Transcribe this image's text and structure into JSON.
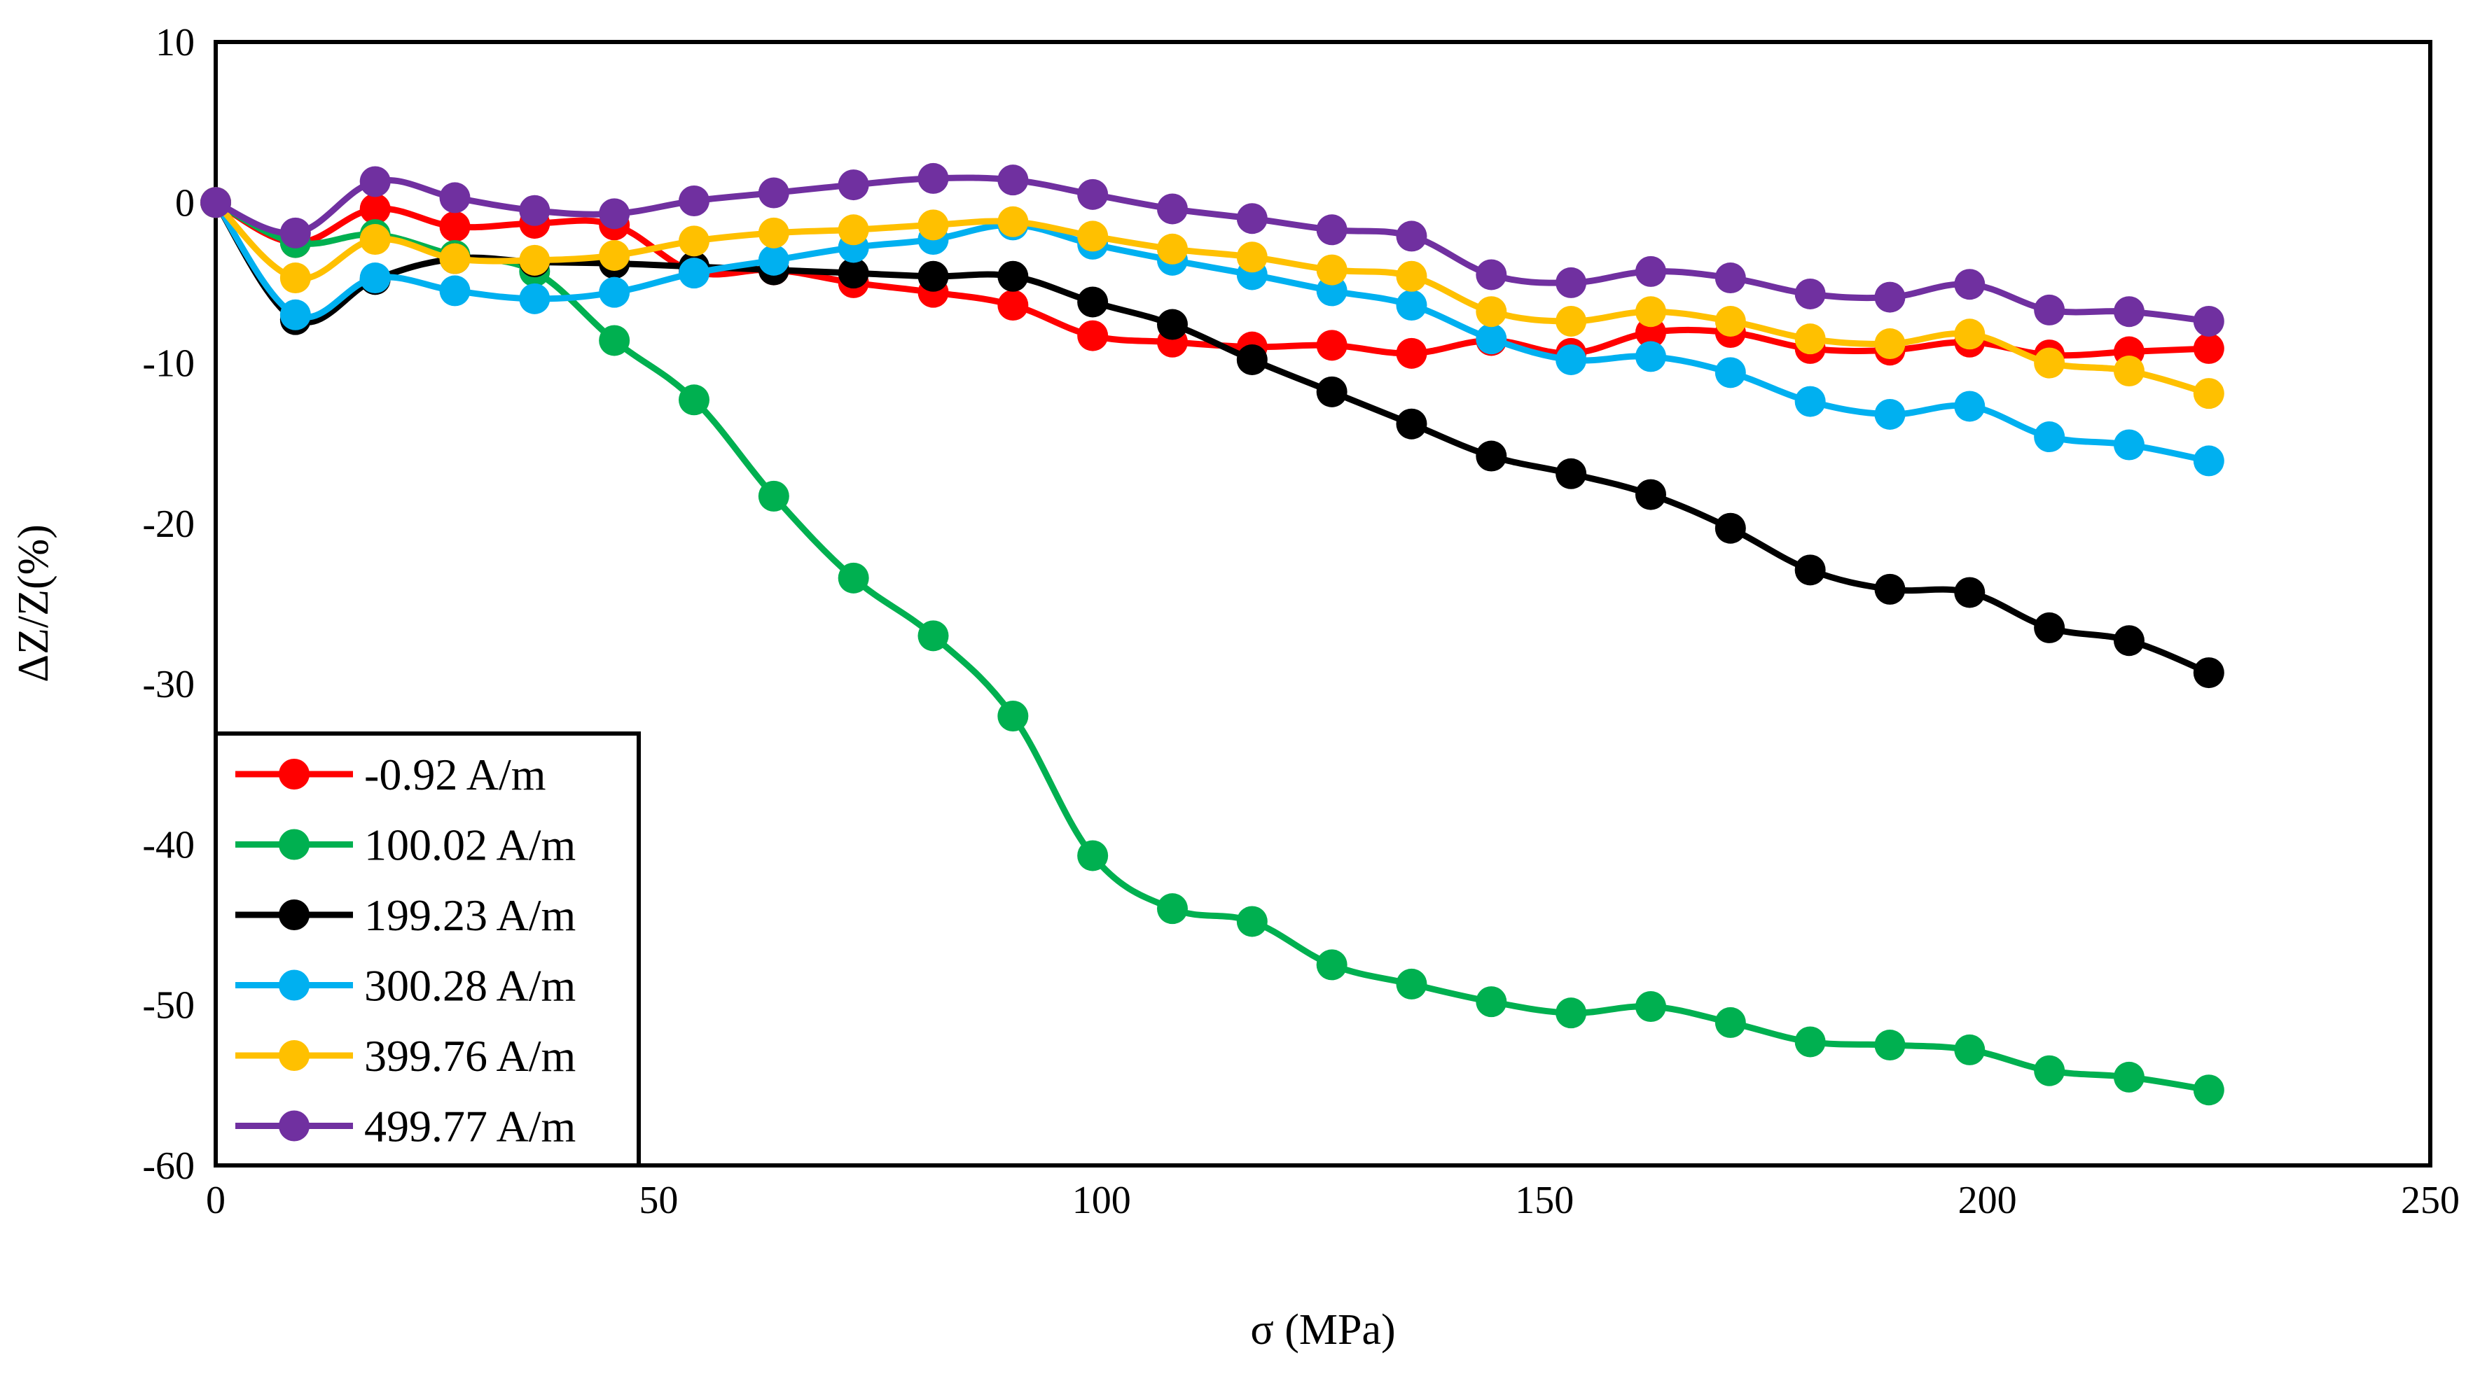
{
  "chart_data": {
    "type": "line",
    "title": "",
    "xlabel": "σ (MPa)",
    "ylabel": "ΔZ/Z(%)",
    "xlim": [
      0,
      250
    ],
    "ylim": [
      -60,
      10
    ],
    "grid": false,
    "legend_position": "bottom-left",
    "xticks": [
      0,
      50,
      100,
      150,
      200,
      250
    ],
    "yticks": [
      10,
      0,
      -10,
      -20,
      -30,
      -40,
      -50,
      -60
    ],
    "x": [
      0,
      9,
      18,
      27,
      36,
      45,
      54,
      63,
      72,
      81,
      90,
      99,
      108,
      117,
      126,
      135,
      144,
      153,
      162,
      171,
      180,
      189,
      198,
      207,
      216,
      225
    ],
    "series": [
      {
        "name": "-0.92 A/m",
        "color": "#ff0000",
        "values": [
          0,
          -2.5,
          -0.4,
          -1.5,
          -1.3,
          -1.4,
          -4.3,
          -4.2,
          -5,
          -5.6,
          -6.4,
          -8.3,
          -8.7,
          -9,
          -8.9,
          -9.4,
          -8.6,
          -9.4,
          -8.1,
          -8.1,
          -9.1,
          -9.2,
          -8.7,
          -9.5,
          -9.3,
          -9.1
        ]
      },
      {
        "name": "100.02 A/m",
        "color": "#00b050",
        "values": [
          0,
          -2.5,
          -2,
          -3.3,
          -4.3,
          -8.6,
          -12.3,
          -18.3,
          -23.4,
          -27,
          -32,
          -40.7,
          -44,
          -44.8,
          -47.5,
          -48.7,
          -49.8,
          -50.5,
          -50.1,
          -51.1,
          -52.3,
          -52.5,
          -52.8,
          -54.1,
          -54.5,
          -55.3
        ]
      },
      {
        "name": "199.23 A/m",
        "color": "#000000",
        "values": [
          0,
          -7.3,
          -4.8,
          -3.5,
          -3.7,
          -3.8,
          -4,
          -4.2,
          -4.4,
          -4.6,
          -4.6,
          -6.2,
          -7.6,
          -9.8,
          -11.8,
          -13.8,
          -15.8,
          -16.9,
          -18.2,
          -20.3,
          -22.9,
          -24.1,
          -24.3,
          -26.5,
          -27.3,
          -29.3
        ]
      },
      {
        "name": "300.28 A/m",
        "color": "#00b0f0",
        "values": [
          0,
          -7,
          -4.7,
          -5.5,
          -6,
          -5.6,
          -4.4,
          -3.6,
          -2.8,
          -2.3,
          -1.4,
          -2.6,
          -3.6,
          -4.5,
          -5.5,
          -6.4,
          -8.5,
          -9.8,
          -9.6,
          -10.6,
          -12.4,
          -13.2,
          -12.7,
          -14.6,
          -15.1,
          -16.1
        ]
      },
      {
        "name": "399.76 A/m",
        "color": "#ffc000",
        "values": [
          0,
          -4.7,
          -2.3,
          -3.5,
          -3.6,
          -3.3,
          -2.4,
          -1.9,
          -1.7,
          -1.4,
          -1.2,
          -2.1,
          -2.9,
          -3.4,
          -4.2,
          -4.6,
          -6.8,
          -7.4,
          -6.8,
          -7.4,
          -8.5,
          -8.8,
          -8.2,
          -10,
          -10.5,
          -11.9
        ]
      },
      {
        "name": "499.77 A/m",
        "color": "#7030a0",
        "values": [
          0,
          -1.9,
          1.3,
          0.3,
          -0.5,
          -0.7,
          0.1,
          0.6,
          1.1,
          1.5,
          1.4,
          0.5,
          -0.4,
          -1,
          -1.7,
          -2.1,
          -4.5,
          -5,
          -4.3,
          -4.7,
          -5.7,
          -5.9,
          -5.1,
          -6.7,
          -6.8,
          -7.4
        ]
      }
    ]
  }
}
